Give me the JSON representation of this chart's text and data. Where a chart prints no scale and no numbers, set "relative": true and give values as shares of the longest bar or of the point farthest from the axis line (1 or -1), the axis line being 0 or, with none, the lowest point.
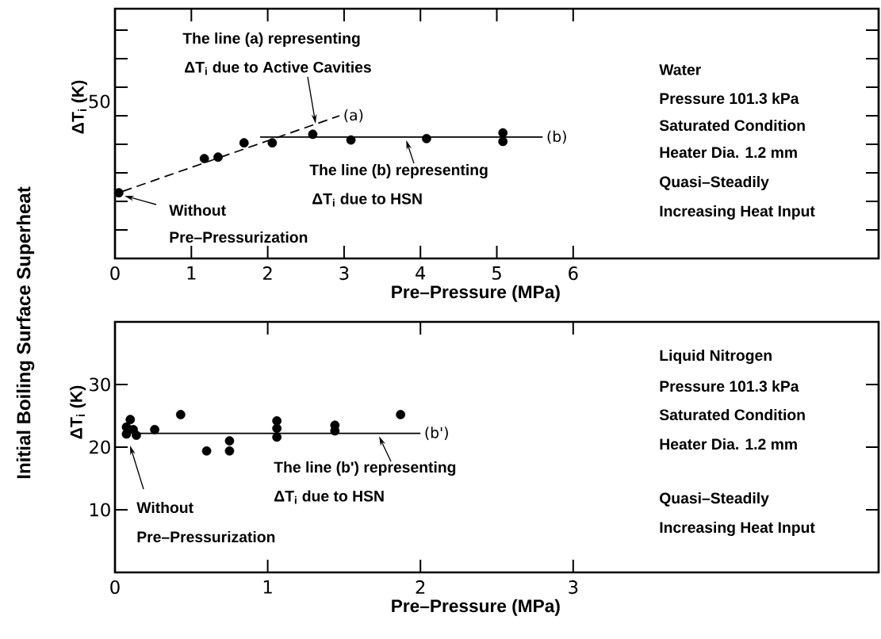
{
  "chart_data": [
    {
      "type": "scatter",
      "relative": true,
      "xlabel": "Pre–Pressure   (MPa)",
      "ylabel": "ΔT$_{i}$ (K)",
      "xlim": [
        0,
        10
      ],
      "xticks": [
        0,
        1,
        2,
        3,
        4,
        5,
        6
      ],
      "series": [
        {
          "color": "#000000",
          "marker": "circle",
          "x": [
            0.05,
            1.17,
            1.35,
            1.69,
            2.06,
            2.59,
            3.09,
            4.08,
            5.08,
            5.08
          ],
          "values": [
            0.46,
            0.7,
            0.71,
            0.81,
            0.81,
            0.87,
            0.83,
            0.84,
            0.88,
            0.82
          ]
        },
        {
          "type": "line",
          "name": "(a)",
          "color": "#000000",
          "line_style": "dashed",
          "marker": "none",
          "x": [
            0.1,
            2.94
          ],
          "values": [
            0.47,
            1
          ]
        },
        {
          "type": "line",
          "name": "(b)",
          "color": "#000000",
          "line_style": "solid",
          "marker": "none",
          "x": [
            1.9,
            5.6
          ],
          "values": [
            0.85,
            0.85
          ]
        }
      ],
      "annotations": [
        "Initial Boiling Surface Superheat",
        "The line (a) representing",
        "ΔT$_{i}$ due to Active Cavities",
        {
          "text": "The line (b) representing",
          "x": 3.8,
          "y": 0.85
        },
        "ΔT$_{i}$ due to HSN",
        "Without",
        "Pre–Pressurization",
        "Water",
        "Pressure 101.3 kPa",
        "Saturated Condition",
        "Heater Dia. 1.2 mm",
        "Quasi–Steadily",
        "Increasing Heat Input",
        "50"
      ]
    },
    {
      "type": "scatter",
      "xlabel": "Pre–Pressure   (MPa)",
      "ylabel": "ΔT$_{i}$ (K)",
      "xlim": [
        0,
        5
      ],
      "ylim": [
        0,
        40
      ],
      "xticks": [
        0,
        1,
        2,
        3
      ],
      "yticks": [
        10,
        20,
        30
      ],
      "series": [
        {
          "color": "#000000",
          "marker": "circle",
          "x": [
            0.075,
            0.075,
            0.1,
            0.12,
            0.14,
            0.26,
            0.43,
            0.6,
            0.75,
            0.75,
            1.06,
            1.06,
            1.06,
            1.44,
            1.44,
            1.87
          ],
          "values": [
            23.2,
            22.1,
            24.4,
            22.8,
            21.9,
            22.8,
            25.2,
            19.4,
            21,
            19.4,
            24.2,
            23,
            21.6,
            23.5,
            22.6,
            25.2
          ]
        },
        {
          "type": "line",
          "name": "(b')",
          "color": "#000000",
          "line_style": "solid",
          "marker": "none",
          "x": [
            0.16,
            2.0
          ],
          "values": [
            22.2,
            22.2
          ]
        }
      ],
      "annotations": [
        "Without",
        "Pre–Pressurization",
        {
          "text": "The line (b') representing",
          "x": 1.72,
          "y": 22.2
        },
        "ΔT$_{i}$ due to HSN",
        "Liquid Nitrogen",
        "Pressure 101.3 kPa",
        "Saturated Condition",
        "Heater Dia. 1.2 mm",
        "Quasi–Steadily",
        "Increasing Heat Input"
      ]
    }
  ]
}
